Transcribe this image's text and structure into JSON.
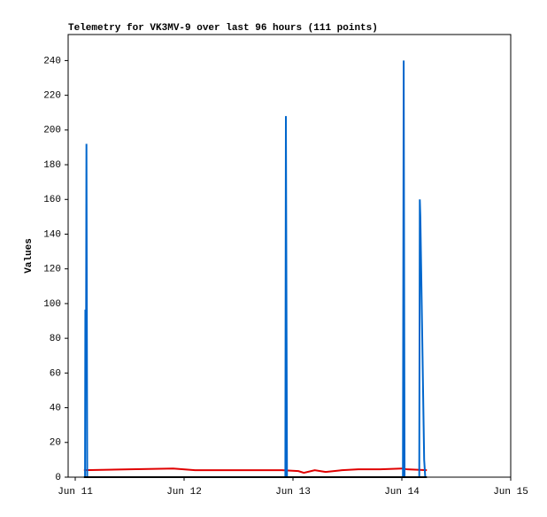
{
  "chart_data": {
    "type": "line",
    "title": "Telemetry for VK3MV-9 over last 96 hours (111 points)",
    "y_label": "Values",
    "xlim": [
      10.935,
      15
    ],
    "xticks": [
      {
        "value": 11,
        "label": "Jun 11"
      },
      {
        "value": 12,
        "label": "Jun 12"
      },
      {
        "value": 13,
        "label": "Jun 13"
      },
      {
        "value": 14,
        "label": "Jun 14"
      },
      {
        "value": 15,
        "label": "Jun 15"
      }
    ],
    "ylim": [
      0,
      255
    ],
    "yticks": [
      0,
      20,
      40,
      60,
      80,
      100,
      120,
      140,
      160,
      180,
      200,
      220,
      240
    ],
    "series": [
      {
        "color": "#000000",
        "x": [
          11.08,
          14.23
        ],
        "values": [
          0,
          0
        ]
      },
      {
        "color": "#e00000",
        "x": [
          11.08,
          11.5,
          11.9,
          12.1,
          12.9,
          13.05,
          13.1,
          13.2,
          13.3,
          13.45,
          13.6,
          13.8,
          14.0,
          14.05,
          14.23
        ],
        "values": [
          4,
          4.5,
          5,
          4,
          4,
          3.5,
          2.5,
          4,
          3,
          4,
          4.5,
          4.5,
          5,
          4.5,
          4
        ]
      },
      {
        "color": "#0066cc",
        "x": [
          11.09,
          11.093,
          11.1,
          11.103,
          11.11,
          12.93,
          12.935,
          12.945,
          14.01,
          14.017,
          14.025,
          14.16,
          14.165,
          14.17,
          14.175,
          14.18,
          14.185,
          14.19,
          14.195,
          14.2,
          14.205,
          14.215,
          14.225
        ],
        "values": [
          0,
          96,
          96,
          192,
          0,
          0,
          208,
          0,
          0,
          240,
          0,
          0,
          160,
          150,
          130,
          110,
          90,
          70,
          50,
          30,
          10,
          0,
          0
        ]
      }
    ]
  }
}
